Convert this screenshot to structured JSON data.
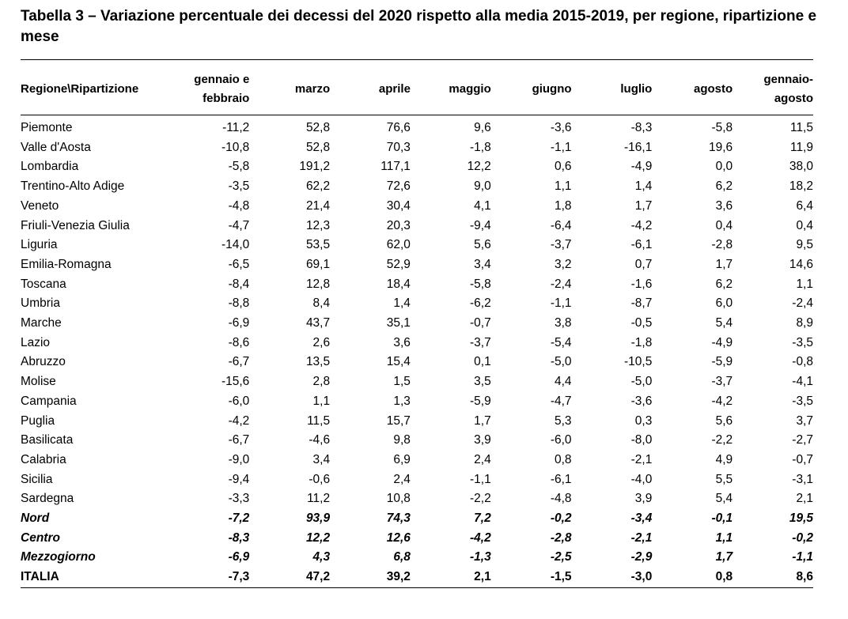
{
  "title": "Tabella  3 – Variazione percentuale dei decessi del 2020 rispetto alla media 2015-2019, per regione, ripartizione e mese",
  "columns": {
    "region": "Regione\\Ripartizione",
    "c1": "gennaio e febbraio",
    "c2": "marzo",
    "c3": "aprile",
    "c4": "maggio",
    "c5": "giugno",
    "c6": "luglio",
    "c7": "agosto",
    "c8": "gennaio-agosto"
  },
  "rows": [
    {
      "name": "Piemonte",
      "v": [
        "-11,2",
        "52,8",
        "76,6",
        "9,6",
        "-3,6",
        "-8,3",
        "-5,8",
        "11,5"
      ]
    },
    {
      "name": "Valle d'Aosta",
      "v": [
        "-10,8",
        "52,8",
        "70,3",
        "-1,8",
        "-1,1",
        "-16,1",
        "19,6",
        "11,9"
      ]
    },
    {
      "name": "Lombardia",
      "v": [
        "-5,8",
        "191,2",
        "117,1",
        "12,2",
        "0,6",
        "-4,9",
        "0,0",
        "38,0"
      ]
    },
    {
      "name": "Trentino-Alto Adige",
      "v": [
        "-3,5",
        "62,2",
        "72,6",
        "9,0",
        "1,1",
        "1,4",
        "6,2",
        "18,2"
      ]
    },
    {
      "name": "Veneto",
      "v": [
        "-4,8",
        "21,4",
        "30,4",
        "4,1",
        "1,8",
        "1,7",
        "3,6",
        "6,4"
      ]
    },
    {
      "name": "Friuli-Venezia Giulia",
      "v": [
        "-4,7",
        "12,3",
        "20,3",
        "-9,4",
        "-6,4",
        "-4,2",
        "0,4",
        "0,4"
      ]
    },
    {
      "name": "Liguria",
      "v": [
        "-14,0",
        "53,5",
        "62,0",
        "5,6",
        "-3,7",
        "-6,1",
        "-2,8",
        "9,5"
      ]
    },
    {
      "name": "Emilia-Romagna",
      "v": [
        "-6,5",
        "69,1",
        "52,9",
        "3,4",
        "3,2",
        "0,7",
        "1,7",
        "14,6"
      ]
    },
    {
      "name": "Toscana",
      "v": [
        "-8,4",
        "12,8",
        "18,4",
        "-5,8",
        "-2,4",
        "-1,6",
        "6,2",
        "1,1"
      ]
    },
    {
      "name": "Umbria",
      "v": [
        "-8,8",
        "8,4",
        "1,4",
        "-6,2",
        "-1,1",
        "-8,7",
        "6,0",
        "-2,4"
      ]
    },
    {
      "name": "Marche",
      "v": [
        "-6,9",
        "43,7",
        "35,1",
        "-0,7",
        "3,8",
        "-0,5",
        "5,4",
        "8,9"
      ]
    },
    {
      "name": "Lazio",
      "v": [
        "-8,6",
        "2,6",
        "3,6",
        "-3,7",
        "-5,4",
        "-1,8",
        "-4,9",
        "-3,5"
      ]
    },
    {
      "name": "Abruzzo",
      "v": [
        "-6,7",
        "13,5",
        "15,4",
        "0,1",
        "-5,0",
        "-10,5",
        "-5,9",
        "-0,8"
      ]
    },
    {
      "name": "Molise",
      "v": [
        "-15,6",
        "2,8",
        "1,5",
        "3,5",
        "4,4",
        "-5,0",
        "-3,7",
        "-4,1"
      ]
    },
    {
      "name": "Campania",
      "v": [
        "-6,0",
        "1,1",
        "1,3",
        "-5,9",
        "-4,7",
        "-3,6",
        "-4,2",
        "-3,5"
      ]
    },
    {
      "name": "Puglia",
      "v": [
        "-4,2",
        "11,5",
        "15,7",
        "1,7",
        "5,3",
        "0,3",
        "5,6",
        "3,7"
      ]
    },
    {
      "name": "Basilicata",
      "v": [
        "-6,7",
        "-4,6",
        "9,8",
        "3,9",
        "-6,0",
        "-8,0",
        "-2,2",
        "-2,7"
      ]
    },
    {
      "name": "Calabria",
      "v": [
        "-9,0",
        "3,4",
        "6,9",
        "2,4",
        "0,8",
        "-2,1",
        "4,9",
        "-0,7"
      ]
    },
    {
      "name": "Sicilia",
      "v": [
        "-9,4",
        "-0,6",
        "2,4",
        "-1,1",
        "-6,1",
        "-4,0",
        "5,5",
        "-3,1"
      ]
    },
    {
      "name": "Sardegna",
      "v": [
        "-3,3",
        "11,2",
        "10,8",
        "-2,2",
        "-4,8",
        "3,9",
        "5,4",
        "2,1"
      ]
    }
  ],
  "aggregates": [
    {
      "name": "Nord",
      "v": [
        "-7,2",
        "93,9",
        "74,3",
        "7,2",
        "-0,2",
        "-3,4",
        "-0,1",
        "19,5"
      ]
    },
    {
      "name": "Centro",
      "v": [
        "-8,3",
        "12,2",
        "12,6",
        "-4,2",
        "-2,8",
        "-2,1",
        "1,1",
        "-0,2"
      ]
    },
    {
      "name": "Mezzogiorno",
      "v": [
        "-6,9",
        "4,3",
        "6,8",
        "-1,3",
        "-2,5",
        "-2,9",
        "1,7",
        "-1,1"
      ]
    }
  ],
  "total": {
    "name": "ITALIA",
    "v": [
      "-7,3",
      "47,2",
      "39,2",
      "2,1",
      "-1,5",
      "-3,0",
      "0,8",
      "8,6"
    ]
  }
}
